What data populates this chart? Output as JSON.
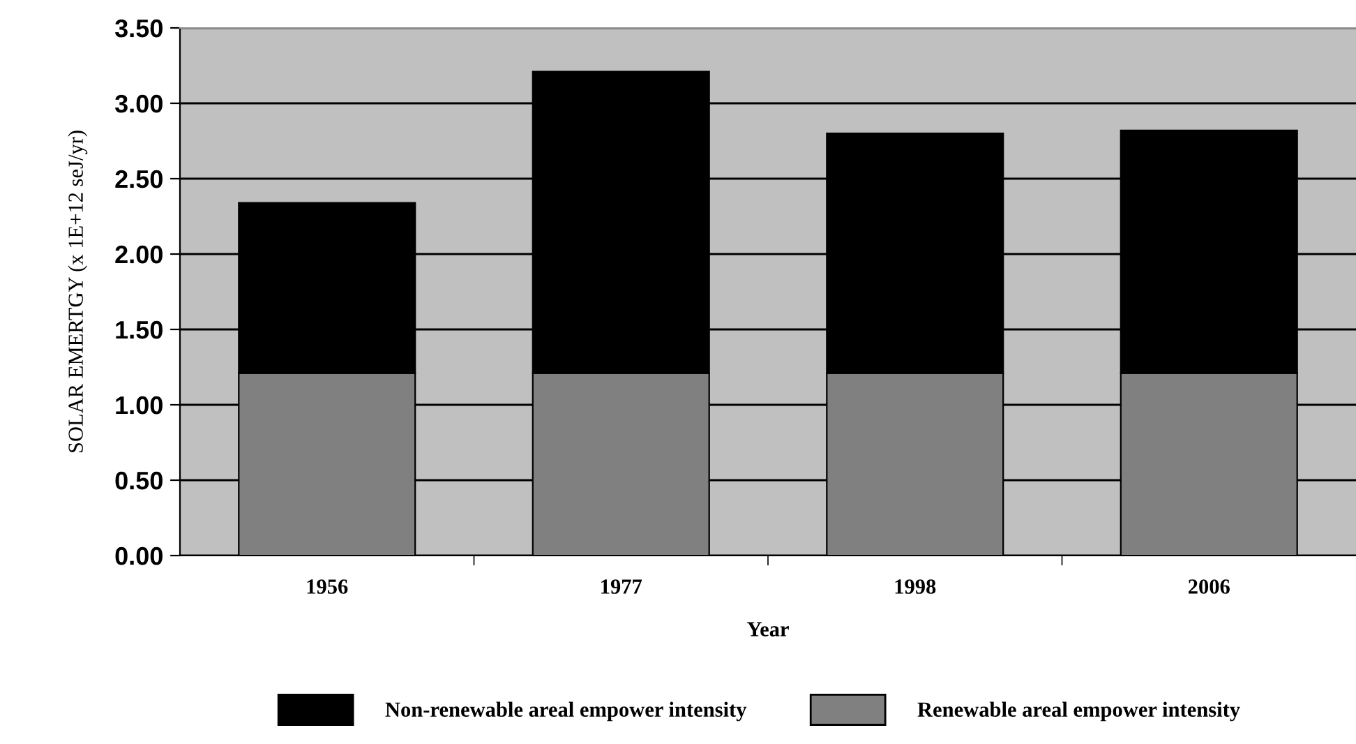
{
  "chart_data": {
    "type": "bar",
    "stacked": true,
    "xlabel": "Year",
    "ylabel": "SOLAR EMERTGY (x 1E+12 seJ/yr)",
    "categories": [
      "1956",
      "1977",
      "1998",
      "2006"
    ],
    "series": [
      {
        "name": "Renewable areal empower intensity",
        "color": "#808080",
        "values": [
          1.21,
          1.21,
          1.21,
          1.21
        ]
      },
      {
        "name": "Non-renewable areal empower intensity",
        "color": "#000000",
        "values": [
          1.13,
          2.0,
          1.59,
          1.61
        ]
      }
    ],
    "ylim": [
      0,
      3.5
    ],
    "yticks": [
      {
        "value": 0,
        "label": "0.00"
      },
      {
        "value": 0.5,
        "label": "0.50"
      },
      {
        "value": 1,
        "label": "1.00"
      },
      {
        "value": 1.5,
        "label": "1.50"
      },
      {
        "value": 2,
        "label": "2.00"
      },
      {
        "value": 2.5,
        "label": "2.50"
      },
      {
        "value": 3,
        "label": "3.00"
      },
      {
        "value": 3.5,
        "label": "3.50"
      }
    ],
    "grid": "y",
    "legend": "bottom"
  }
}
